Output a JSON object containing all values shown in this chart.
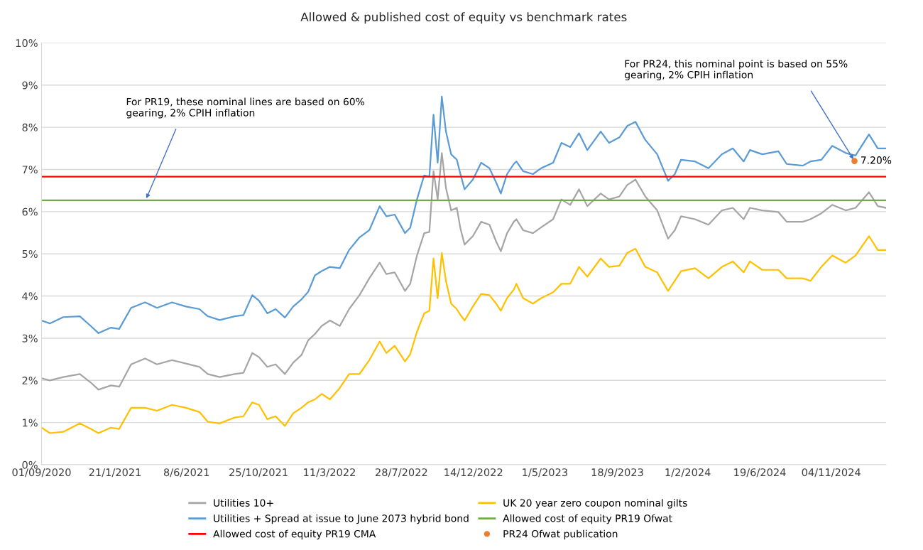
{
  "chart_data": {
    "type": "line",
    "title": "Allowed & published cost of equity vs benchmark rates",
    "x": [
      "2020-09-01",
      "2020-09-17",
      "2020-10-13",
      "2020-11-14",
      "2020-12-05",
      "2020-12-20",
      "2021-01-13",
      "2021-01-29",
      "2021-02-21",
      "2021-03-20",
      "2021-04-12",
      "2021-05-11",
      "2021-06-07",
      "2021-07-03",
      "2021-07-19",
      "2021-08-11",
      "2021-09-09",
      "2021-09-26",
      "2021-10-13",
      "2021-10-26",
      "2021-11-11",
      "2021-11-27",
      "2021-12-15",
      "2021-12-31",
      "2022-01-16",
      "2022-01-29",
      "2022-02-11",
      "2022-02-24",
      "2022-03-12",
      "2022-03-31",
      "2022-04-18",
      "2022-05-08",
      "2022-05-27",
      "2022-06-16",
      "2022-06-29",
      "2022-07-15",
      "2022-08-04",
      "2022-08-14",
      "2022-08-27",
      "2022-09-10",
      "2022-09-20",
      "2022-09-28",
      "2022-10-06",
      "2022-10-14",
      "2022-10-22",
      "2022-11-01",
      "2022-11-12",
      "2022-11-19",
      "2022-11-27",
      "2022-12-13",
      "2022-12-29",
      "2023-01-14",
      "2023-01-27",
      "2023-02-05",
      "2023-02-17",
      "2023-03-02",
      "2023-03-07",
      "2023-03-20",
      "2023-04-08",
      "2023-04-24",
      "2023-05-17",
      "2023-06-02",
      "2023-06-19",
      "2023-07-06",
      "2023-07-22",
      "2023-08-17",
      "2023-09-02",
      "2023-09-22",
      "2023-10-07",
      "2023-10-23",
      "2023-11-11",
      "2023-12-04",
      "2023-12-25",
      "2024-01-07",
      "2024-01-19",
      "2024-02-15",
      "2024-03-12",
      "2024-04-07",
      "2024-04-28",
      "2024-05-19",
      "2024-05-31",
      "2024-06-24",
      "2024-07-25",
      "2024-08-10",
      "2024-09-10",
      "2024-09-25",
      "2024-10-16",
      "2024-11-06",
      "2024-12-02",
      "2024-12-21",
      "2025-01-16",
      "2025-02-02",
      "2025-02-18"
    ],
    "series": [
      {
        "name": "Utilities 10+",
        "color": "#a5a5a5",
        "values": [
          2.05,
          2.0,
          2.08,
          2.15,
          1.95,
          1.78,
          1.88,
          1.85,
          2.38,
          2.52,
          2.38,
          2.48,
          2.4,
          2.32,
          2.15,
          2.08,
          2.15,
          2.18,
          2.65,
          2.55,
          2.32,
          2.38,
          2.15,
          2.42,
          2.6,
          2.95,
          3.1,
          3.29,
          3.42,
          3.29,
          3.69,
          4.02,
          4.42,
          4.79,
          4.52,
          4.56,
          4.12,
          4.29,
          4.96,
          5.49,
          5.52,
          6.96,
          6.29,
          7.39,
          6.56,
          6.03,
          6.09,
          5.6,
          5.22,
          5.42,
          5.76,
          5.69,
          5.29,
          5.06,
          5.49,
          5.76,
          5.82,
          5.56,
          5.49,
          5.63,
          5.82,
          6.29,
          6.16,
          6.53,
          6.13,
          6.43,
          6.29,
          6.36,
          6.63,
          6.76,
          6.36,
          6.03,
          5.36,
          5.56,
          5.89,
          5.82,
          5.69,
          6.03,
          6.09,
          5.82,
          6.09,
          6.03,
          5.99,
          5.76,
          5.76,
          5.82,
          5.96,
          6.16,
          6.03,
          6.09,
          6.46,
          6.13,
          6.09
        ]
      },
      {
        "name": "UK 20 year zero coupon nominal gilts",
        "color": "#ffc000",
        "values": [
          0.88,
          0.75,
          0.78,
          0.98,
          0.85,
          0.75,
          0.88,
          0.85,
          1.35,
          1.35,
          1.28,
          1.42,
          1.35,
          1.25,
          1.02,
          0.98,
          1.12,
          1.15,
          1.48,
          1.42,
          1.08,
          1.15,
          0.92,
          1.22,
          1.35,
          1.48,
          1.55,
          1.68,
          1.55,
          1.82,
          2.15,
          2.15,
          2.48,
          2.92,
          2.65,
          2.82,
          2.45,
          2.62,
          3.15,
          3.59,
          3.65,
          4.89,
          3.95,
          5.02,
          4.36,
          3.82,
          3.69,
          3.55,
          3.42,
          3.75,
          4.05,
          4.02,
          3.82,
          3.65,
          3.95,
          4.15,
          4.29,
          3.95,
          3.82,
          3.95,
          4.09,
          4.29,
          4.29,
          4.69,
          4.46,
          4.89,
          4.69,
          4.72,
          5.02,
          5.12,
          4.69,
          4.56,
          4.12,
          4.36,
          4.59,
          4.66,
          4.42,
          4.69,
          4.82,
          4.56,
          4.82,
          4.62,
          4.62,
          4.42,
          4.42,
          4.36,
          4.69,
          4.96,
          4.79,
          4.96,
          5.42,
          5.09,
          5.09
        ]
      },
      {
        "name": "Utilities + Spread at issue to June 2073 hybrid bond",
        "color": "#5b9bd5",
        "values": [
          3.42,
          3.35,
          3.5,
          3.52,
          3.29,
          3.12,
          3.25,
          3.22,
          3.72,
          3.85,
          3.72,
          3.85,
          3.75,
          3.69,
          3.52,
          3.43,
          3.52,
          3.55,
          4.02,
          3.89,
          3.59,
          3.69,
          3.49,
          3.75,
          3.92,
          4.1,
          4.49,
          4.59,
          4.69,
          4.66,
          5.09,
          5.39,
          5.56,
          6.13,
          5.89,
          5.93,
          5.49,
          5.62,
          6.29,
          6.86,
          6.83,
          8.3,
          7.16,
          8.73,
          7.9,
          7.36,
          7.23,
          6.89,
          6.53,
          6.76,
          7.16,
          7.03,
          6.69,
          6.43,
          6.89,
          7.13,
          7.19,
          6.96,
          6.89,
          7.03,
          7.16,
          7.63,
          7.53,
          7.86,
          7.46,
          7.9,
          7.63,
          7.76,
          8.03,
          8.13,
          7.7,
          7.36,
          6.73,
          6.89,
          7.23,
          7.19,
          7.03,
          7.36,
          7.5,
          7.19,
          7.46,
          7.36,
          7.43,
          7.13,
          7.09,
          7.19,
          7.23,
          7.56,
          7.39,
          7.33,
          7.83,
          7.5,
          7.5
        ]
      },
      {
        "name": "Allowed cost of equity PR19 Ofwat",
        "color": "#70ad47",
        "x": [
          "2020-09-01",
          "2025-02-18"
        ],
        "values": [
          6.27,
          6.27
        ]
      },
      {
        "name": "Allowed cost of equity PR19 CMA",
        "color": "#ff0000",
        "x": [
          "2020-09-01",
          "2025-02-18"
        ],
        "values": [
          6.83,
          6.83
        ]
      },
      {
        "name": "PR24 Ofwat publication",
        "type": "scatter",
        "color": "#ed7d31",
        "x": [
          "2024-12-19"
        ],
        "values": [
          7.2
        ],
        "value_labels": [
          "7.20%"
        ]
      }
    ],
    "xlim": [
      "2020-09-01",
      "2025-02-18"
    ],
    "xticks": [
      {
        "value": "2020-09-01",
        "label": "01/09/2020"
      },
      {
        "value": "2021-01-21",
        "label": "21/1/2021"
      },
      {
        "value": "2021-06-08",
        "label": "8/6/2021"
      },
      {
        "value": "2021-10-25",
        "label": "25/10/2021"
      },
      {
        "value": "2022-03-11",
        "label": "11/3/2022"
      },
      {
        "value": "2022-07-28",
        "label": "28/7/2022"
      },
      {
        "value": "2022-12-14",
        "label": "14/12/2022"
      },
      {
        "value": "2023-05-01",
        "label": "1/5/2023"
      },
      {
        "value": "2023-09-18",
        "label": "18/9/2023"
      },
      {
        "value": "2024-02-01",
        "label": "1/2/2024"
      },
      {
        "value": "2024-06-19",
        "label": "19/6/2024"
      },
      {
        "value": "2024-11-04",
        "label": "04/11/2024"
      }
    ],
    "ylim": [
      0,
      10
    ],
    "yticks": [
      {
        "value": 0,
        "label": "0%"
      },
      {
        "value": 1,
        "label": "1%"
      },
      {
        "value": 2,
        "label": "2%"
      },
      {
        "value": 3,
        "label": "3%"
      },
      {
        "value": 4,
        "label": "4%"
      },
      {
        "value": 5,
        "label": "5%"
      },
      {
        "value": 6,
        "label": "6%"
      },
      {
        "value": 7,
        "label": "7%"
      },
      {
        "value": 8,
        "label": "8%"
      },
      {
        "value": 9,
        "label": "9%"
      },
      {
        "value": 10,
        "label": "10%"
      }
    ],
    "grid": "y",
    "legend": "bottom",
    "marker": "none",
    "line_style": "solid",
    "annotations": [
      {
        "text": "For PR19, these nominal lines are based on 60% gearing, 2% CPIH inflation",
        "x": "2021-03-21",
        "y": 6.27
      },
      {
        "text": "For PR24, this nominal point is based on 55% gearing, 2% CPIH inflation",
        "x": "2024-12-19",
        "y": 7.2
      }
    ]
  }
}
